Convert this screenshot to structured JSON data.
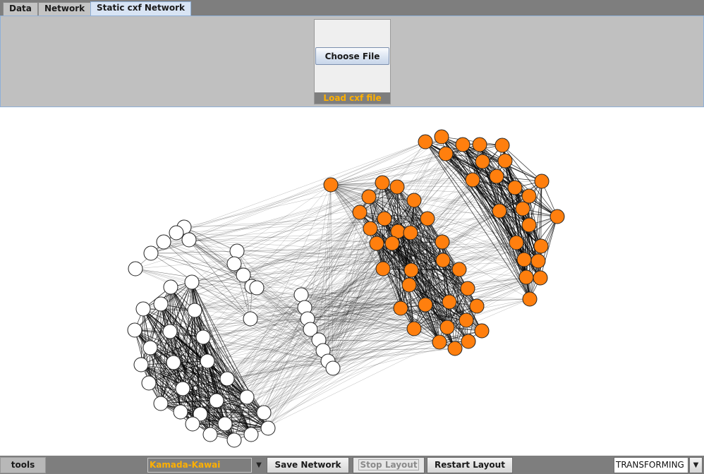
{
  "tabs": [
    {
      "label": "Data"
    },
    {
      "label": "Network"
    },
    {
      "label": "Static cxf Network",
      "active": true
    }
  ],
  "loader": {
    "choose_file_label": "Choose File",
    "caption": "Load cxf file"
  },
  "graph": {
    "colors": {
      "group_a_fill": "#ffffff",
      "group_b_fill": "#ff7f0e",
      "node_stroke": "#222222",
      "edge": "#000000"
    }
  },
  "bottom_bar": {
    "tools_label": "tools",
    "layout_algorithm": "Kamada-Kawai",
    "save_label": "Save Network",
    "stop_label": "Stop Layout",
    "restart_label": "Restart Layout",
    "mode": "TRANSFORMING"
  },
  "icons": {
    "dropdown": "chevron-down-icon"
  }
}
